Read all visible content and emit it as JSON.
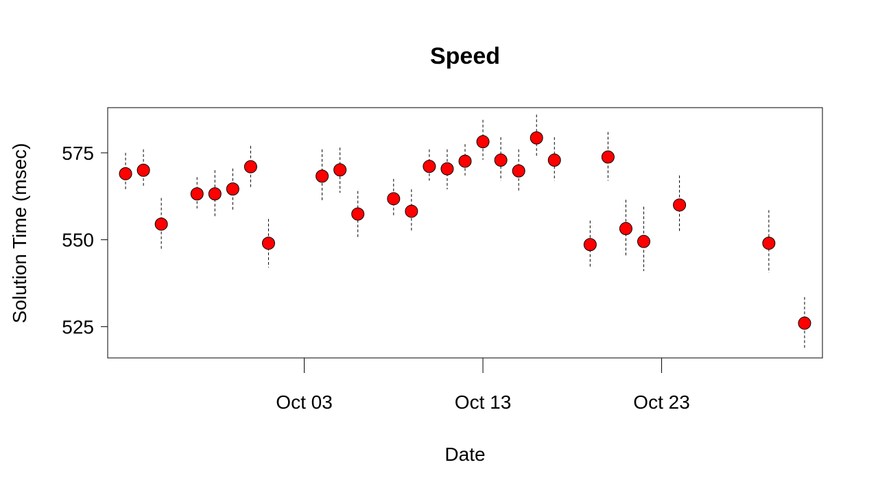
{
  "chart_data": {
    "type": "scatter",
    "title": "Speed",
    "xlabel": "Date",
    "ylabel": "Solution Time (msec)",
    "x_ticks": [
      "Oct 03",
      "Oct 13",
      "Oct 23"
    ],
    "y_ticks": [
      525,
      550,
      575
    ],
    "xlim": [
      "Sep 22",
      "Nov 01"
    ],
    "ylim": [
      516,
      588
    ],
    "marker_color": "#ff0000",
    "marker_edge": "#000000",
    "error_bar_style": "dashed",
    "grid": false,
    "points": [
      {
        "x": "Sep 23",
        "y": 569.0,
        "lo": 564.0,
        "hi": 575.0
      },
      {
        "x": "Sep 24",
        "y": 570.0,
        "lo": 565.0,
        "hi": 576.0
      },
      {
        "x": "Sep 25",
        "y": 554.5,
        "lo": 547.0,
        "hi": 562.0
      },
      {
        "x": "Sep 27",
        "y": 563.2,
        "lo": 559.0,
        "hi": 568.0
      },
      {
        "x": "Sep 28",
        "y": 563.2,
        "lo": 556.5,
        "hi": 570.0
      },
      {
        "x": "Sep 29",
        "y": 564.6,
        "lo": 558.5,
        "hi": 570.5
      },
      {
        "x": "Sep 30",
        "y": 571.0,
        "lo": 565.0,
        "hi": 577.0
      },
      {
        "x": "Oct 01",
        "y": 549.0,
        "lo": 542.0,
        "hi": 556.0
      },
      {
        "x": "Oct 04",
        "y": 568.3,
        "lo": 561.0,
        "hi": 576.0
      },
      {
        "x": "Oct 05",
        "y": 570.1,
        "lo": 563.5,
        "hi": 576.5
      },
      {
        "x": "Oct 06",
        "y": 557.4,
        "lo": 550.5,
        "hi": 564.0
      },
      {
        "x": "Oct 08",
        "y": 561.8,
        "lo": 556.5,
        "hi": 567.5
      },
      {
        "x": "Oct 09",
        "y": 558.2,
        "lo": 552.5,
        "hi": 564.5
      },
      {
        "x": "Oct 10",
        "y": 571.1,
        "lo": 567.0,
        "hi": 576.0
      },
      {
        "x": "Oct 11",
        "y": 570.4,
        "lo": 564.5,
        "hi": 576.0
      },
      {
        "x": "Oct 12",
        "y": 572.6,
        "lo": 568.5,
        "hi": 577.5
      },
      {
        "x": "Oct 13",
        "y": 578.2,
        "lo": 573.0,
        "hi": 584.5
      },
      {
        "x": "Oct 14",
        "y": 572.9,
        "lo": 567.0,
        "hi": 579.5
      },
      {
        "x": "Oct 15",
        "y": 569.8,
        "lo": 564.0,
        "hi": 576.0
      },
      {
        "x": "Oct 16",
        "y": 579.3,
        "lo": 574.0,
        "hi": 586.0
      },
      {
        "x": "Oct 17",
        "y": 572.9,
        "lo": 567.0,
        "hi": 579.5
      },
      {
        "x": "Oct 19",
        "y": 548.6,
        "lo": 542.0,
        "hi": 555.5
      },
      {
        "x": "Oct 20",
        "y": 573.8,
        "lo": 567.0,
        "hi": 581.0
      },
      {
        "x": "Oct 21",
        "y": 553.2,
        "lo": 545.0,
        "hi": 561.5
      },
      {
        "x": "Oct 22",
        "y": 549.5,
        "lo": 541.0,
        "hi": 559.5
      },
      {
        "x": "Oct 24",
        "y": 560.0,
        "lo": 552.0,
        "hi": 568.5
      },
      {
        "x": "Oct 29",
        "y": 549.0,
        "lo": 540.5,
        "hi": 558.5
      },
      {
        "x": "Oct 31",
        "y": 526.0,
        "lo": 518.5,
        "hi": 533.5
      }
    ]
  }
}
